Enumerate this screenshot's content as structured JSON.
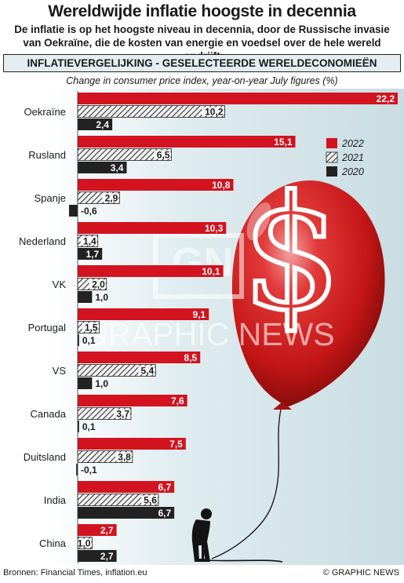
{
  "header": {
    "title": "Wereldwijde inflatie hoogste in decennia",
    "subtitle": "De inflatie is op het hoogste niveau in decennia, door de Russische invasie van Oekraïne, die de kosten van energie en voedsel over de hele wereld opdrijft",
    "section": "INFLATIEVERGELIJKING - GESELECTEERDE WERELDECONOMIEËN",
    "axis_note": "Change in consumer price index, year-on-year July figures (%)"
  },
  "chart_data": {
    "type": "bar",
    "orientation": "horizontal",
    "categories": [
      "Oekraïne",
      "Rusland",
      "Spanje",
      "Nederland",
      "VK",
      "Portugal",
      "VS",
      "Canada",
      "Duitsland",
      "India",
      "China"
    ],
    "series": [
      {
        "name": "2022",
        "color": "#d3131f",
        "pattern": "solid",
        "values": [
          22.2,
          15.1,
          10.8,
          10.3,
          10.1,
          9.1,
          8.5,
          7.6,
          7.5,
          6.7,
          2.7
        ],
        "labels": [
          "22,2",
          "15,1",
          "10,8",
          "10,3",
          "10,1",
          "9,1",
          "8,5",
          "7,6",
          "7,5",
          "6,7",
          "2,7"
        ]
      },
      {
        "name": "2021",
        "color": "#555555",
        "pattern": "hatched",
        "values": [
          10.2,
          6.5,
          2.9,
          1.4,
          2.0,
          1.5,
          5.4,
          3.7,
          3.8,
          5.6,
          1.0
        ],
        "labels": [
          "10,2",
          "6,5",
          "2,9",
          "1,4",
          "2,0",
          "1,5",
          "5,4",
          "3,7",
          "3,8",
          "5,6",
          "1,0"
        ]
      },
      {
        "name": "2020",
        "color": "#222222",
        "pattern": "solid",
        "values": [
          2.4,
          3.4,
          -0.6,
          1.7,
          1.0,
          0.1,
          1.0,
          0.1,
          -0.1,
          6.7,
          2.7
        ],
        "labels": [
          "2,4",
          "3,4",
          "-0,6",
          "1,7",
          "1,0",
          "0,1",
          "1,0",
          "0,1",
          "-0,1",
          "6,7",
          "2,7"
        ]
      }
    ],
    "legend_position": "right"
  },
  "watermark": "GRAPHIC NEWS",
  "footer": {
    "sources": "Bronnen: Financial Times, inflation.eu",
    "credit": "© GRAPHIC NEWS"
  }
}
